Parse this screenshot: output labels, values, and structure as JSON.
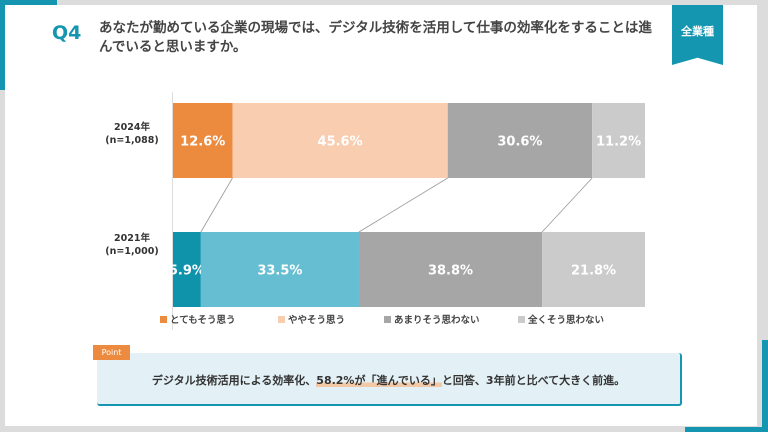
{
  "header": {
    "q_label": "Q4",
    "title": "あなたが勤めている企業の現場では、デジタル技術を活用して仕事の効率化をすることは進んでいると思いますか。",
    "badge": "全業種"
  },
  "chart_data": {
    "type": "bar",
    "stacked": true,
    "orientation": "horizontal",
    "categories": [
      "2024年\n(n=1,088)",
      "2021年\n(n=1,000)"
    ],
    "category_labels": [
      {
        "year": "2024年",
        "n": "(n=1,088)"
      },
      {
        "year": "2021年",
        "n": "(n=1,000)"
      }
    ],
    "series": [
      {
        "name": "とてもそう思う",
        "values": [
          12.6,
          5.9
        ],
        "colors": [
          "#ec8a3e",
          "#0e93ab"
        ]
      },
      {
        "name": "ややそう思う",
        "values": [
          45.6,
          33.5
        ],
        "colors": [
          "#f8cdb0",
          "#66bed2"
        ]
      },
      {
        "name": "あまりそう思わない",
        "values": [
          30.6,
          38.8
        ],
        "colors": [
          "#a6a6a6",
          "#a6a6a6"
        ]
      },
      {
        "name": "全くそう思わない",
        "values": [
          11.2,
          21.8
        ],
        "colors": [
          "#cbcbcb",
          "#cbcbcb"
        ]
      }
    ],
    "legend_colors": [
      "#ec8a3e",
      "#f8cdb0",
      "#a6a6a6",
      "#cbcbcb"
    ],
    "unit": "%",
    "xlim": [
      0,
      100
    ],
    "legend_position": "bottom"
  },
  "point": {
    "tag": "Point",
    "text_before": "デジタル技術活用による効率化、",
    "highlight": "58.2%が「進んでいる」",
    "text_after": "と回答、3年前と比べて大きく前進。"
  }
}
